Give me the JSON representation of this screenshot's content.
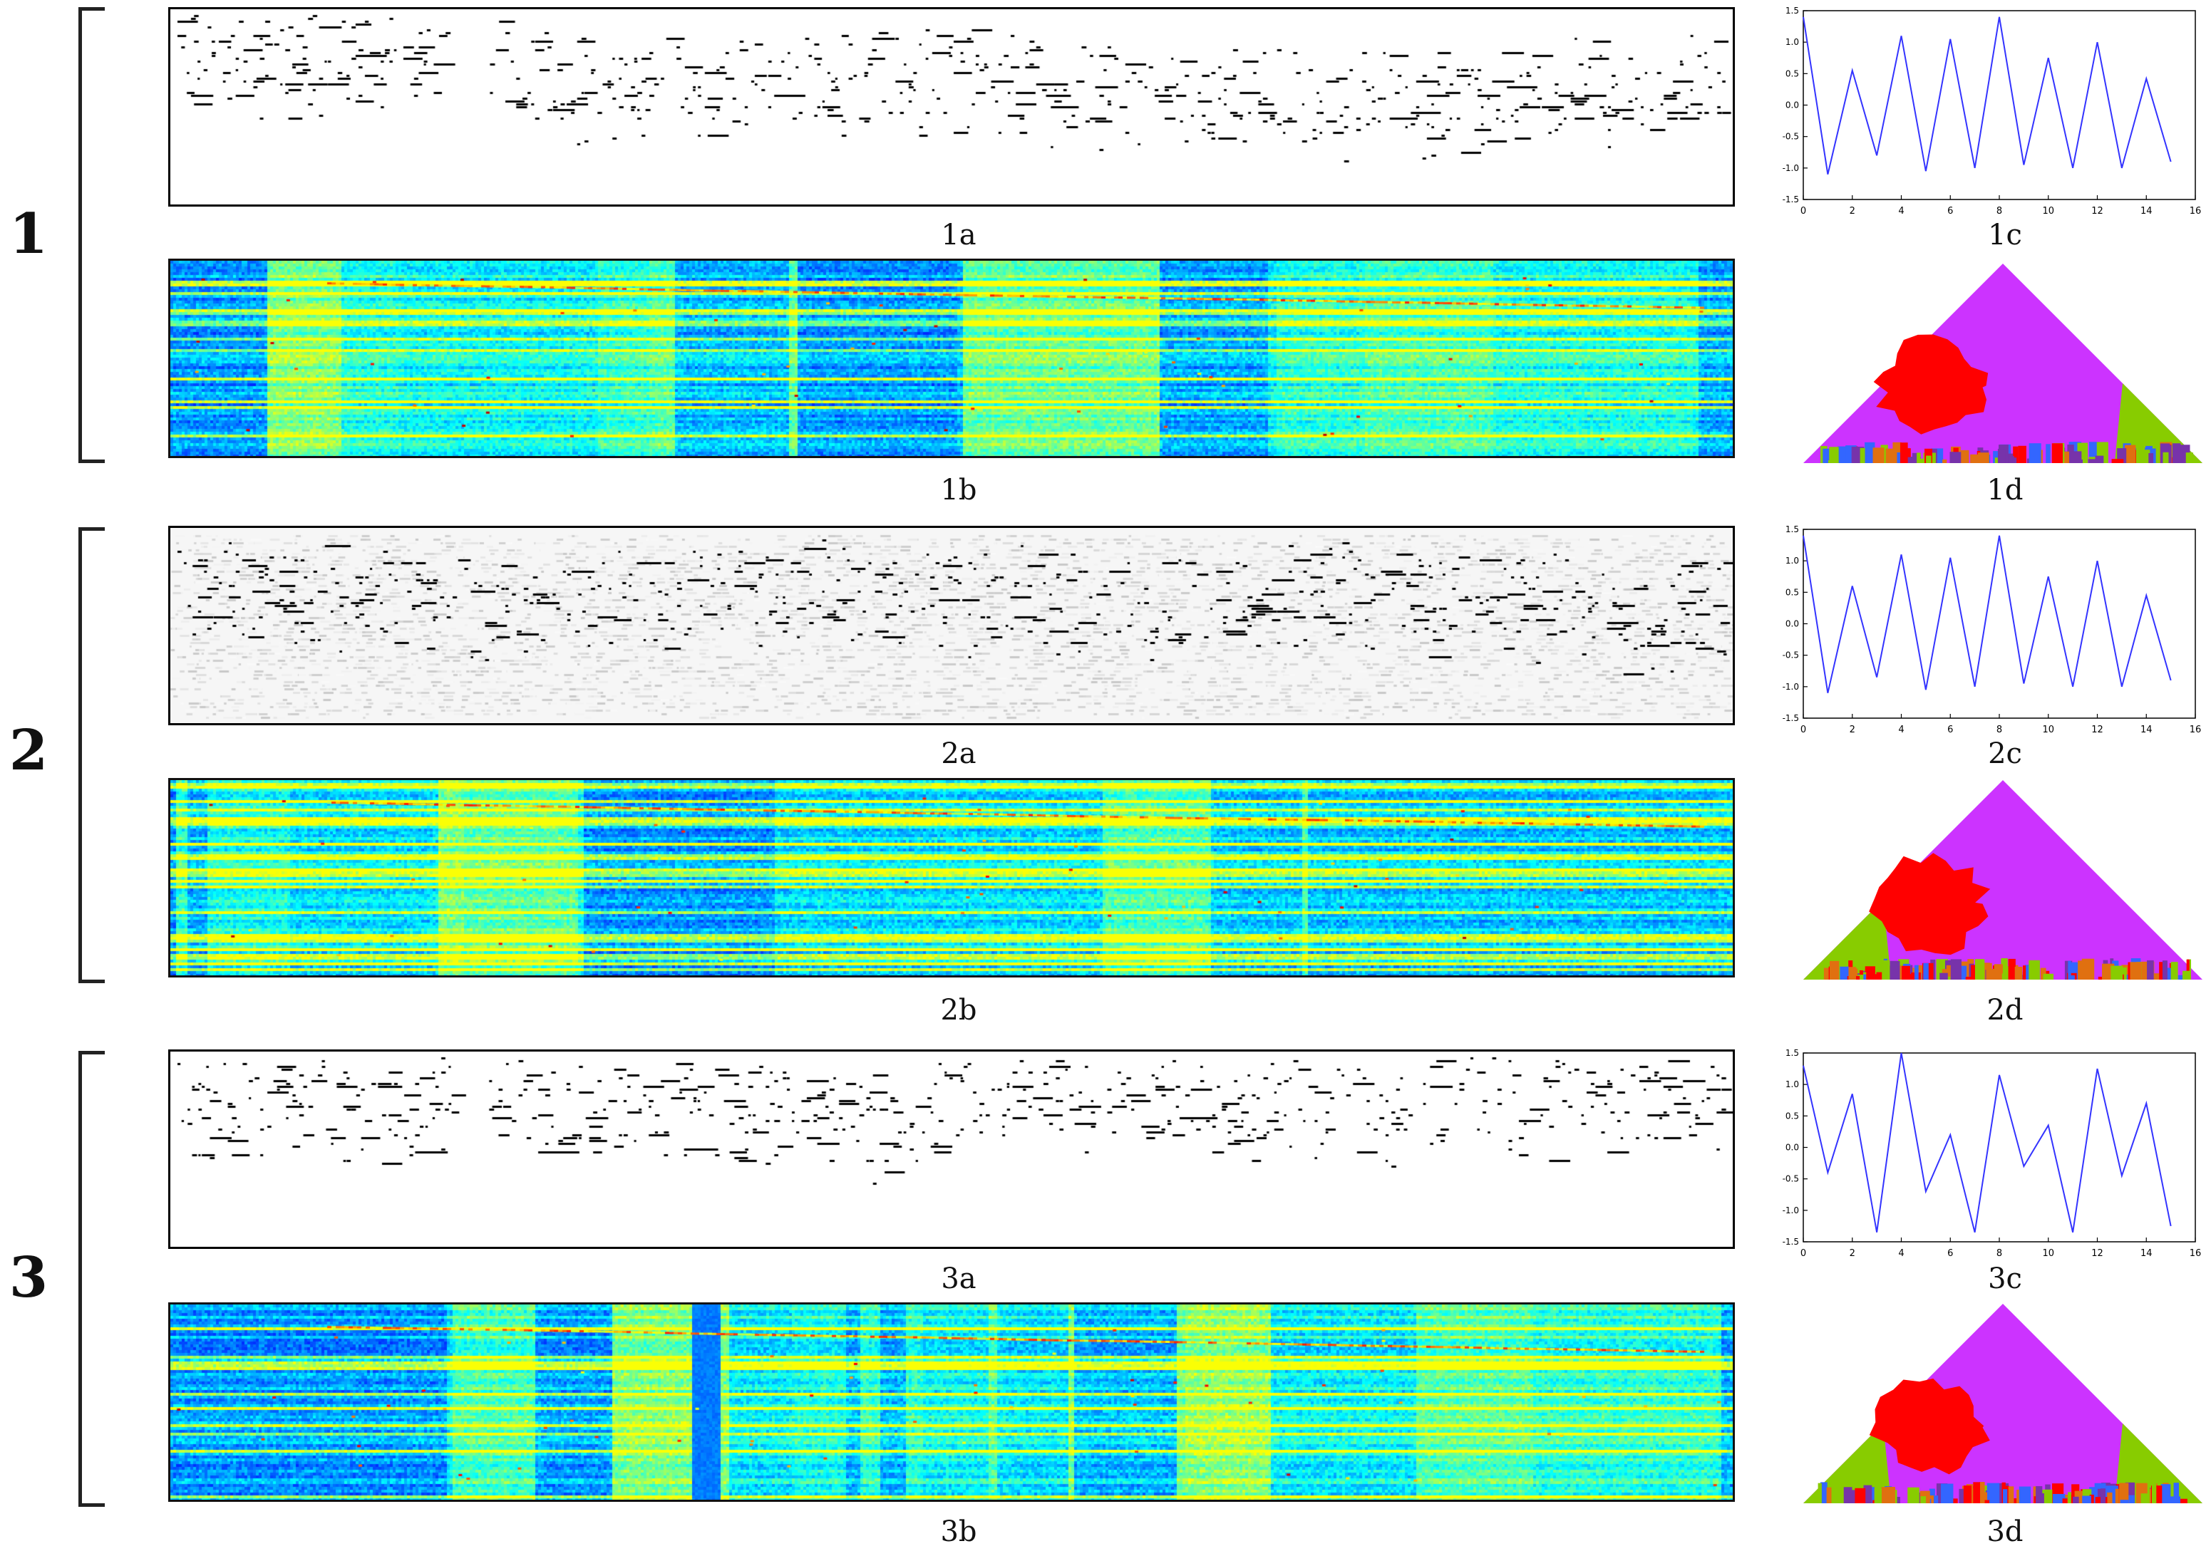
{
  "groups": [
    {
      "label": "1",
      "captions": {
        "a": "1a",
        "b": "1b",
        "c": "1c",
        "d": "1d"
      },
      "chart_c_series": [
        1.4,
        -1.1,
        0.55,
        -0.8,
        1.1,
        -1.05,
        1.05,
        -1.0,
        1.4,
        -0.95,
        0.75,
        -1.0,
        1.0,
        -1.0,
        0.42,
        -0.9
      ]
    },
    {
      "label": "2",
      "captions": {
        "a": "2a",
        "b": "2b",
        "c": "2c",
        "d": "2d"
      },
      "chart_c_series": [
        1.4,
        -1.1,
        0.6,
        -0.85,
        1.1,
        -1.05,
        1.05,
        -1.0,
        1.4,
        -0.95,
        0.75,
        -1.0,
        1.0,
        -1.0,
        0.45,
        -0.9
      ]
    },
    {
      "label": "3",
      "captions": {
        "a": "3a",
        "b": "3b",
        "c": "3c",
        "d": "3d"
      },
      "chart_c_series": [
        1.3,
        -0.4,
        0.85,
        -1.35,
        1.5,
        -0.7,
        0.2,
        -1.35,
        1.15,
        -0.3,
        0.35,
        -1.35,
        1.25,
        -0.45,
        0.7,
        -1.25
      ]
    }
  ],
  "chart_data": [
    {
      "type": "line",
      "caption": "1c",
      "x": [
        0,
        1,
        2,
        3,
        4,
        5,
        6,
        7,
        8,
        9,
        10,
        11,
        12,
        13,
        14,
        15
      ],
      "series": [
        {
          "values": [
            1.4,
            -1.1,
            0.55,
            -0.8,
            1.1,
            -1.05,
            1.05,
            -1.0,
            1.4,
            -0.95,
            0.75,
            -1.0,
            1.0,
            -1.0,
            0.42,
            -0.9
          ]
        }
      ],
      "xlim": [
        0,
        16
      ],
      "ylim": [
        -1.5,
        1.5
      ],
      "xticks": [
        "0",
        "2",
        "4",
        "6",
        "8",
        "10",
        "12",
        "14",
        "16"
      ],
      "yticks": [
        "1.5",
        "1.0",
        "0.5",
        "0.0",
        "-0.5",
        "-1.0",
        "-1.5"
      ],
      "color": "#3333ff"
    },
    {
      "type": "line",
      "caption": "2c",
      "x": [
        0,
        1,
        2,
        3,
        4,
        5,
        6,
        7,
        8,
        9,
        10,
        11,
        12,
        13,
        14,
        15
      ],
      "series": [
        {
          "values": [
            1.4,
            -1.1,
            0.6,
            -0.85,
            1.1,
            -1.05,
            1.05,
            -1.0,
            1.4,
            -0.95,
            0.75,
            -1.0,
            1.0,
            -1.0,
            0.45,
            -0.9
          ]
        }
      ],
      "xlim": [
        0,
        16
      ],
      "ylim": [
        -1.5,
        1.5
      ],
      "xticks": [
        "0",
        "2",
        "4",
        "6",
        "8",
        "10",
        "12",
        "14",
        "16"
      ],
      "yticks": [
        "1.5",
        "1.0",
        "0.5",
        "0.0",
        "-0.5",
        "-1.0",
        "-1.5"
      ],
      "color": "#3333ff"
    },
    {
      "type": "line",
      "caption": "3c",
      "x": [
        0,
        1,
        2,
        3,
        4,
        5,
        6,
        7,
        8,
        9,
        10,
        11,
        12,
        13,
        14,
        15
      ],
      "series": [
        {
          "values": [
            1.3,
            -0.4,
            0.85,
            -1.35,
            1.5,
            -0.7,
            0.2,
            -1.35,
            1.15,
            -0.3,
            0.35,
            -1.35,
            1.25,
            -0.45,
            0.7,
            -1.25
          ]
        }
      ],
      "xlim": [
        0,
        16
      ],
      "ylim": [
        -1.5,
        1.5
      ],
      "xticks": [
        "0",
        "2",
        "4",
        "6",
        "8",
        "10",
        "12",
        "14",
        "16"
      ],
      "yticks": [
        "1.5",
        "1.0",
        "0.5",
        "0.0",
        "-0.5",
        "-1.0",
        "-1.5"
      ],
      "color": "#3333ff"
    },
    {
      "type": "heatmap",
      "caption": "1b",
      "colormap": "jet"
    },
    {
      "type": "heatmap",
      "caption": "2b",
      "colormap": "jet"
    },
    {
      "type": "heatmap",
      "caption": "3b",
      "colormap": "jet"
    }
  ],
  "colors": {
    "triangle_magenta": "#cc33ff",
    "triangle_red": "#ff0000",
    "triangle_green": "#88cc00",
    "triangle_blue": "#3366ff",
    "triangle_orange": "#e07010",
    "triangle_purple": "#7733aa",
    "line_blue": "#3333ff",
    "heat_base": "#0a1a9a"
  }
}
